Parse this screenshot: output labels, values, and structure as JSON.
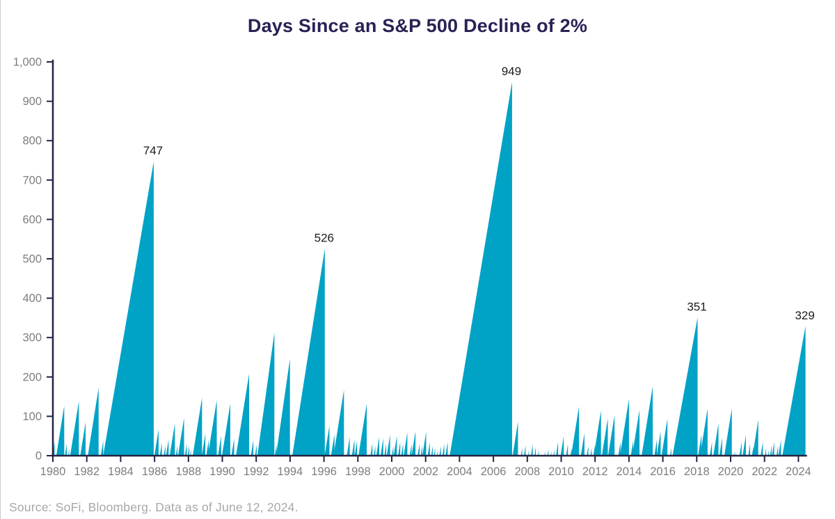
{
  "title": "Days Since an S&P 500 Decline of 2%",
  "source_note": "Source: SoFi, Bloomberg. Data as of June 12, 2024.",
  "colors": {
    "background": "#ffffff",
    "area_fill": "#00a2c6",
    "axis": "#252243",
    "tick_label": "#7d7d7d",
    "title": "#2b2155",
    "peak_label": "#1a1a1a",
    "source": "#a8a8a8",
    "window_edge": "#c9c9c9"
  },
  "chart_data": {
    "type": "area",
    "subtype": "sawtooth-days-counter",
    "title": "Days Since an S&P 500 Decline of 2%",
    "xlabel": "",
    "ylabel": "",
    "xlim": [
      1980,
      2024.6
    ],
    "ylim": [
      0,
      1000
    ],
    "x_ticks": [
      1980,
      1982,
      1984,
      1986,
      1988,
      1990,
      1992,
      1994,
      1996,
      1998,
      2000,
      2002,
      2004,
      2006,
      2008,
      2010,
      2012,
      2014,
      2016,
      2018,
      2020,
      2022,
      2024
    ],
    "y_ticks": [
      0,
      100,
      200,
      300,
      400,
      500,
      600,
      700,
      800,
      900,
      1000
    ],
    "grid": false,
    "legend": false,
    "rise_days_per_year": 270,
    "annotated_peaks": [
      {
        "year": 1985.95,
        "value": 747
      },
      {
        "year": 1996.05,
        "value": 526
      },
      {
        "year": 2007.1,
        "value": 949
      },
      {
        "year": 2018.05,
        "value": 351
      },
      {
        "year": 2024.42,
        "value": 329
      }
    ],
    "peaks": [
      {
        "y": 1980.1,
        "v": 38
      },
      {
        "y": 1980.67,
        "v": 127
      },
      {
        "y": 1980.82,
        "v": 30
      },
      {
        "y": 1980.96,
        "v": 18
      },
      {
        "y": 1981.53,
        "v": 138
      },
      {
        "y": 1981.93,
        "v": 85
      },
      {
        "y": 1982.7,
        "v": 172
      },
      {
        "y": 1982.97,
        "v": 38
      },
      {
        "y": 1985.95,
        "v": 747,
        "label": true,
        "start": 1982.97
      },
      {
        "y": 1986.24,
        "v": 67
      },
      {
        "y": 1986.43,
        "v": 32
      },
      {
        "y": 1986.64,
        "v": 26
      },
      {
        "y": 1986.83,
        "v": 41
      },
      {
        "y": 1986.97,
        "v": 20
      },
      {
        "y": 1987.2,
        "v": 82
      },
      {
        "y": 1987.35,
        "v": 25
      },
      {
        "y": 1987.74,
        "v": 96
      },
      {
        "y": 1987.9,
        "v": 30
      },
      {
        "y": 1988.05,
        "v": 25
      },
      {
        "y": 1988.15,
        "v": 15
      },
      {
        "y": 1988.8,
        "v": 147
      },
      {
        "y": 1989.0,
        "v": 56
      },
      {
        "y": 1989.2,
        "v": 40
      },
      {
        "y": 1989.67,
        "v": 141
      },
      {
        "y": 1989.93,
        "v": 50
      },
      {
        "y": 1990.1,
        "v": 30
      },
      {
        "y": 1990.47,
        "v": 132
      },
      {
        "y": 1990.7,
        "v": 44
      },
      {
        "y": 1990.9,
        "v": 25
      },
      {
        "y": 1991.05,
        "v": 30
      },
      {
        "y": 1991.58,
        "v": 208
      },
      {
        "y": 1991.83,
        "v": 40
      },
      {
        "y": 1992.03,
        "v": 28
      },
      {
        "y": 1993.07,
        "v": 312,
        "start": 1992.07
      },
      {
        "y": 1993.2,
        "v": 28
      },
      {
        "y": 1993.35,
        "v": 20
      },
      {
        "y": 1993.99,
        "v": 246,
        "start": 1993.17
      },
      {
        "y": 1996.05,
        "v": 526,
        "label": true,
        "start": 1994.13
      },
      {
        "y": 1996.32,
        "v": 76
      },
      {
        "y": 1996.62,
        "v": 55
      },
      {
        "y": 1997.18,
        "v": 167
      },
      {
        "y": 1997.52,
        "v": 47
      },
      {
        "y": 1997.8,
        "v": 41
      },
      {
        "y": 1997.95,
        "v": 38
      },
      {
        "y": 1998.52,
        "v": 132
      },
      {
        "y": 1998.86,
        "v": 32
      },
      {
        "y": 1999.03,
        "v": 25
      },
      {
        "y": 1999.26,
        "v": 47
      },
      {
        "y": 1999.5,
        "v": 44
      },
      {
        "y": 1999.67,
        "v": 30
      },
      {
        "y": 1999.9,
        "v": 53
      },
      {
        "y": 2000.1,
        "v": 25
      },
      {
        "y": 2000.3,
        "v": 50
      },
      {
        "y": 2000.5,
        "v": 35
      },
      {
        "y": 2000.67,
        "v": 30
      },
      {
        "y": 2000.92,
        "v": 59
      },
      {
        "y": 2001.17,
        "v": 30
      },
      {
        "y": 2001.4,
        "v": 62
      },
      {
        "y": 2001.64,
        "v": 30
      },
      {
        "y": 2001.8,
        "v": 25
      },
      {
        "y": 2002.03,
        "v": 60
      },
      {
        "y": 2002.25,
        "v": 35
      },
      {
        "y": 2002.42,
        "v": 25
      },
      {
        "y": 2002.56,
        "v": 20
      },
      {
        "y": 2002.72,
        "v": 15
      },
      {
        "y": 2002.9,
        "v": 25
      },
      {
        "y": 2003.1,
        "v": 30
      },
      {
        "y": 2003.3,
        "v": 35
      },
      {
        "y": 2007.1,
        "v": 949,
        "label": true,
        "start": 2003.42
      },
      {
        "y": 2007.45,
        "v": 86
      },
      {
        "y": 2007.7,
        "v": 20
      },
      {
        "y": 2007.9,
        "v": 26
      },
      {
        "y": 2008.1,
        "v": 15
      },
      {
        "y": 2008.32,
        "v": 29
      },
      {
        "y": 2008.5,
        "v": 22
      },
      {
        "y": 2008.68,
        "v": 15
      },
      {
        "y": 2009.05,
        "v": 12
      },
      {
        "y": 2009.25,
        "v": 18
      },
      {
        "y": 2009.42,
        "v": 12
      },
      {
        "y": 2009.6,
        "v": 15
      },
      {
        "y": 2009.82,
        "v": 35
      },
      {
        "y": 2010.15,
        "v": 50
      },
      {
        "y": 2010.4,
        "v": 30
      },
      {
        "y": 2010.62,
        "v": 20
      },
      {
        "y": 2011.05,
        "v": 125
      },
      {
        "y": 2011.37,
        "v": 57
      },
      {
        "y": 2011.6,
        "v": 25
      },
      {
        "y": 2011.8,
        "v": 20
      },
      {
        "y": 2012.0,
        "v": 28
      },
      {
        "y": 2012.35,
        "v": 115
      },
      {
        "y": 2012.75,
        "v": 95
      },
      {
        "y": 2013.15,
        "v": 103
      },
      {
        "y": 2013.5,
        "v": 35
      },
      {
        "y": 2014.0,
        "v": 144
      },
      {
        "y": 2014.25,
        "v": 38
      },
      {
        "y": 2014.62,
        "v": 116
      },
      {
        "y": 2014.85,
        "v": 25
      },
      {
        "y": 2015.4,
        "v": 176
      },
      {
        "y": 2015.65,
        "v": 41
      },
      {
        "y": 2015.87,
        "v": 62
      },
      {
        "y": 2016.27,
        "v": 94
      },
      {
        "y": 2016.5,
        "v": 20
      },
      {
        "y": 2018.05,
        "v": 351,
        "label": true,
        "start": 2016.57
      },
      {
        "y": 2018.28,
        "v": 53
      },
      {
        "y": 2018.64,
        "v": 120
      },
      {
        "y": 2018.9,
        "v": 35
      },
      {
        "y": 2019.1,
        "v": 20
      },
      {
        "y": 2019.28,
        "v": 82
      },
      {
        "y": 2019.5,
        "v": 45
      },
      {
        "y": 2020.07,
        "v": 120
      },
      {
        "y": 2020.22,
        "v": 12
      },
      {
        "y": 2020.33,
        "v": 10
      },
      {
        "y": 2020.65,
        "v": 35
      },
      {
        "y": 2020.9,
        "v": 52
      },
      {
        "y": 2021.15,
        "v": 30
      },
      {
        "y": 2021.35,
        "v": 25
      },
      {
        "y": 2021.63,
        "v": 91
      },
      {
        "y": 2021.9,
        "v": 35
      },
      {
        "y": 2022.1,
        "v": 20
      },
      {
        "y": 2022.25,
        "v": 15
      },
      {
        "y": 2022.42,
        "v": 25
      },
      {
        "y": 2022.57,
        "v": 35
      },
      {
        "y": 2022.8,
        "v": 25
      },
      {
        "y": 2022.97,
        "v": 40
      },
      {
        "y": 2024.42,
        "v": 329,
        "label": true,
        "start": 2023.05
      }
    ]
  }
}
